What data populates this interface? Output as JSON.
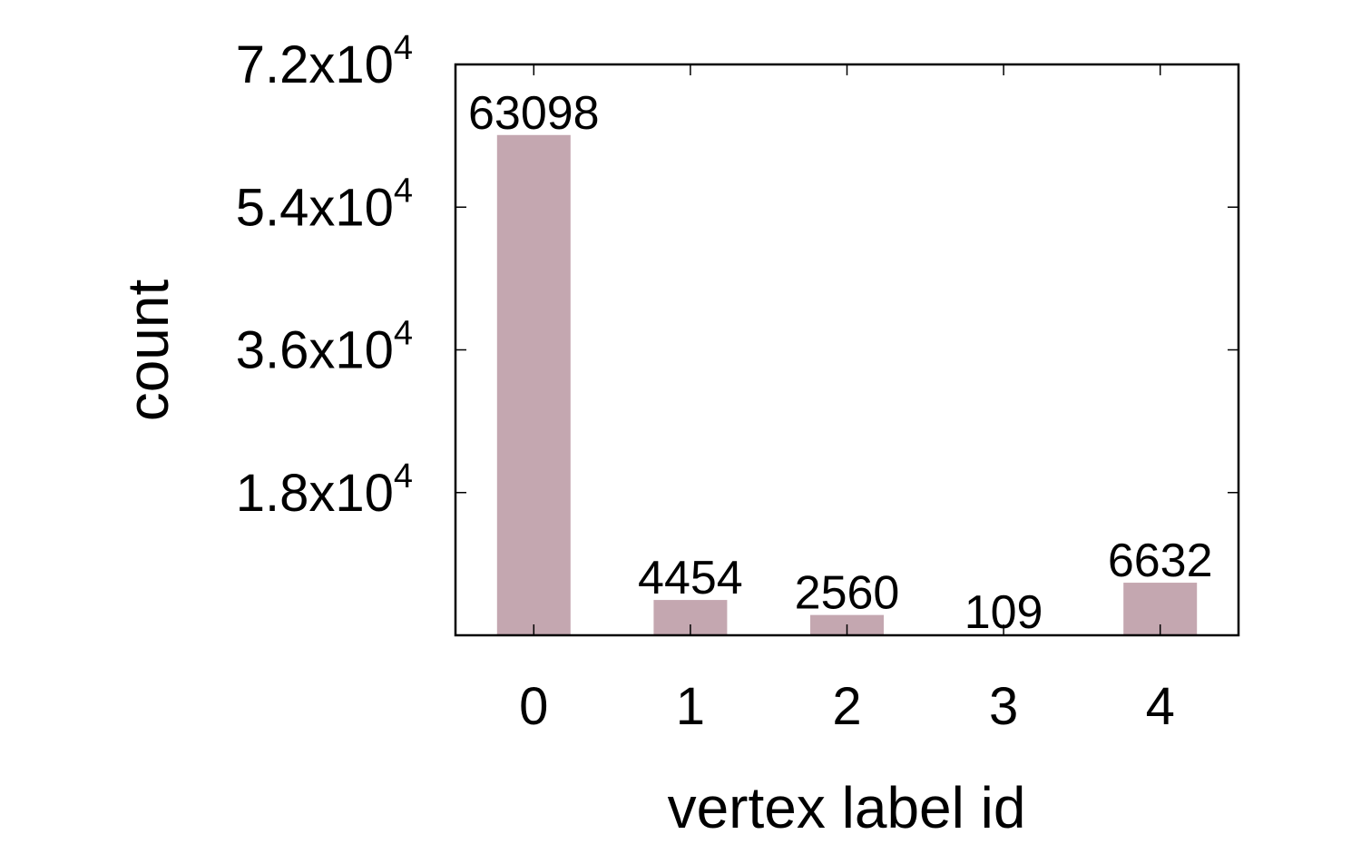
{
  "chart_data": {
    "type": "bar",
    "title": "",
    "xlabel": "vertex label id",
    "ylabel": "count",
    "categories": [
      "0",
      "1",
      "2",
      "3",
      "4"
    ],
    "values": [
      63098,
      4454,
      2560,
      109,
      6632
    ],
    "data_labels": [
      "63098",
      "4454",
      "2560",
      "109",
      "6632"
    ],
    "ylim": [
      0,
      72000
    ],
    "yticks": [
      {
        "value": 18000,
        "mantissa": "1.8x10",
        "exponent": "4"
      },
      {
        "value": 36000,
        "mantissa": "3.6x10",
        "exponent": "4"
      },
      {
        "value": 54000,
        "mantissa": "5.4x10",
        "exponent": "4"
      },
      {
        "value": 72000,
        "mantissa": "7.2x10",
        "exponent": "4"
      }
    ],
    "grid": false,
    "legend": "none",
    "bar_color": "#c4a7b0"
  }
}
